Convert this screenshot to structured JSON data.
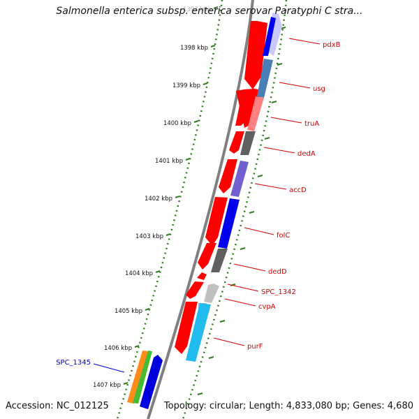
{
  "title": "Salmonella enterica subsp. enterica serovar Paratyphi C stra...",
  "footer": {
    "accession_label": "Accession: NC_012125",
    "topology_label": "Topology: circular; Length: 4,833,080 bp; Genes: 4,680"
  },
  "colors": {
    "backbone": "#808080",
    "tick": "#2e7d1e",
    "label_forward": "#d40000",
    "label_reverse": "#0000cc",
    "orf_red": "#ff0000"
  },
  "kbp_ticks": [
    {
      "label": "1397 kbp",
      "faded": true
    },
    {
      "label": "1398 kbp"
    },
    {
      "label": "1399 kbp"
    },
    {
      "label": "1400 kbp"
    },
    {
      "label": "1401 kbp"
    },
    {
      "label": "1402 kbp"
    },
    {
      "label": "1403 kbp"
    },
    {
      "label": "1404 kbp"
    },
    {
      "label": "1405 kbp"
    },
    {
      "label": "1406 kbp"
    },
    {
      "label": "1407 kbp"
    }
  ],
  "gene_labels": [
    {
      "text": "pdxB",
      "strand": "forward"
    },
    {
      "text": "usg",
      "strand": "forward"
    },
    {
      "text": "truA",
      "strand": "forward"
    },
    {
      "text": "dedA",
      "strand": "forward"
    },
    {
      "text": "accD",
      "strand": "forward"
    },
    {
      "text": "folC",
      "strand": "forward"
    },
    {
      "text": "dedD",
      "strand": "forward"
    },
    {
      "text": "SPC_1342",
      "strand": "forward"
    },
    {
      "text": "cvpA",
      "strand": "forward"
    },
    {
      "text": "purF",
      "strand": "forward"
    },
    {
      "text": "SPC_1345",
      "strand": "reverse"
    }
  ],
  "features": {
    "orf_ring": [
      {
        "name": "orf",
        "color": "#ff0000"
      }
    ],
    "gene_ring": [
      {
        "name": "pdxB",
        "colors": [
          "#0000ee",
          "#c8c8ff"
        ]
      },
      {
        "name": "usg",
        "color": "#4a7fb5"
      },
      {
        "name": "truA",
        "color": "#ff8080"
      },
      {
        "name": "dedA",
        "color": "#606060"
      },
      {
        "name": "accD",
        "color": "#7060d0"
      },
      {
        "name": "folC",
        "color": "#0000ee"
      },
      {
        "name": "dedD",
        "color": "#606060"
      },
      {
        "name": "SPC_1342",
        "color": "#c0c0c0"
      },
      {
        "name": "cvpA",
        "color": "#b0b0b0"
      },
      {
        "name": "purF",
        "color": "#22bbee"
      }
    ],
    "reverse_ring": [
      {
        "name": "SPC_1345",
        "colors": [
          "#ff8c1a",
          "#44bb33",
          "#0000dd"
        ]
      }
    ]
  }
}
